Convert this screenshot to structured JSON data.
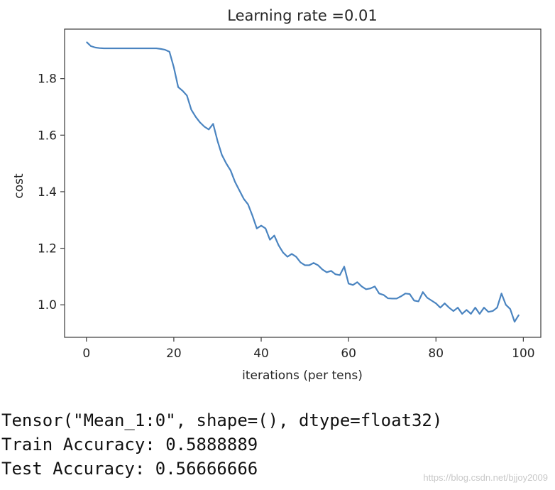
{
  "chart_data": {
    "type": "line",
    "title": "Learning rate =0.01",
    "xlabel": "iterations (per tens)",
    "ylabel": "cost",
    "xlim": [
      -5,
      104
    ],
    "ylim": [
      0.885,
      1.975
    ],
    "xticks": [
      0,
      20,
      40,
      60,
      80,
      100
    ],
    "yticks": [
      1.0,
      1.2,
      1.4,
      1.6,
      1.8
    ],
    "ytick_labels": [
      "1.0",
      "1.2",
      "1.4",
      "1.6",
      "1.8"
    ],
    "grid": false,
    "line_color": "#4a84c0",
    "x": [
      0,
      1,
      2,
      3,
      4,
      5,
      6,
      7,
      8,
      9,
      10,
      11,
      12,
      13,
      14,
      15,
      16,
      17,
      18,
      19,
      20,
      21,
      22,
      23,
      24,
      25,
      26,
      27,
      28,
      29,
      30,
      31,
      32,
      33,
      34,
      35,
      36,
      37,
      38,
      39,
      40,
      41,
      42,
      43,
      44,
      45,
      46,
      47,
      48,
      49,
      50,
      51,
      52,
      53,
      54,
      55,
      56,
      57,
      58,
      59,
      60,
      61,
      62,
      63,
      64,
      65,
      66,
      67,
      68,
      69,
      70,
      71,
      72,
      73,
      74,
      75,
      76,
      77,
      78,
      79,
      80,
      81,
      82,
      83,
      84,
      85,
      86,
      87,
      88,
      89,
      90,
      91,
      92,
      93,
      94,
      95,
      96,
      97,
      98,
      99
    ],
    "y": [
      1.93,
      1.915,
      1.91,
      1.908,
      1.907,
      1.907,
      1.907,
      1.907,
      1.907,
      1.907,
      1.907,
      1.907,
      1.907,
      1.907,
      1.907,
      1.907,
      1.907,
      1.905,
      1.902,
      1.895,
      1.84,
      1.77,
      1.757,
      1.74,
      1.69,
      1.665,
      1.645,
      1.63,
      1.62,
      1.64,
      1.58,
      1.53,
      1.5,
      1.475,
      1.435,
      1.405,
      1.375,
      1.355,
      1.315,
      1.27,
      1.28,
      1.27,
      1.23,
      1.245,
      1.21,
      1.185,
      1.17,
      1.18,
      1.17,
      1.15,
      1.14,
      1.14,
      1.148,
      1.14,
      1.125,
      1.115,
      1.12,
      1.108,
      1.105,
      1.135,
      1.075,
      1.07,
      1.08,
      1.065,
      1.055,
      1.058,
      1.065,
      1.04,
      1.035,
      1.023,
      1.022,
      1.022,
      1.03,
      1.04,
      1.038,
      1.015,
      1.012,
      1.045,
      1.025,
      1.015,
      1.005,
      0.99,
      1.005,
      0.99,
      0.978,
      0.99,
      0.968,
      0.982,
      0.968,
      0.99,
      0.968,
      0.99,
      0.975,
      0.978,
      0.99,
      1.04,
      1.0,
      0.985,
      0.94,
      0.965
    ]
  },
  "console": {
    "line1": "Tensor(\"Mean_1:0\", shape=(), dtype=float32)",
    "line2": "Train Accuracy: 0.5888889",
    "line3": "Test Accuracy: 0.56666666"
  },
  "watermark": "https://blog.csdn.net/bjjoy2009"
}
